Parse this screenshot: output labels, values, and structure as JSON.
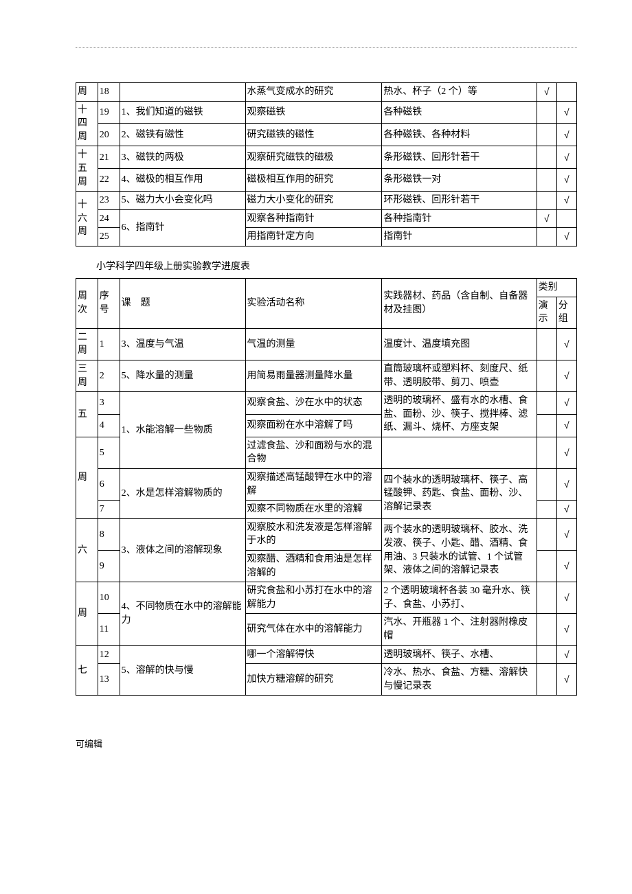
{
  "check_mark": "√",
  "table1": {
    "rows": [
      {
        "week": "周",
        "seq": "18",
        "topic": "",
        "activity": "水蒸气变成水的研究",
        "material": "热水、杯子（2 个）等",
        "demo": true,
        "group": false
      },
      {
        "week": "十四周",
        "seq": "19",
        "topic": "1、我们知道的磁铁",
        "activity": "观察磁铁",
        "material": "各种磁铁",
        "demo": false,
        "group": true,
        "week_rowspan": 2
      },
      {
        "seq": "20",
        "topic": "2、磁铁有磁性",
        "activity": "研究磁铁的磁性",
        "material": "各种磁铁、各种材料",
        "demo": false,
        "group": true
      },
      {
        "week": "十五周",
        "seq": "21",
        "topic": "3、磁铁的两极",
        "activity": "观察研究磁铁的磁极",
        "material": "条形磁铁、回形针若干",
        "demo": false,
        "group": true,
        "week_rowspan": 2
      },
      {
        "seq": "22",
        "topic": "4、磁极的相互作用",
        "activity": "磁极相互作用的研究",
        "material": "条形磁铁一对",
        "demo": false,
        "group": true
      },
      {
        "week": "十六周",
        "seq": "23",
        "topic": "5、磁力大小会变化吗",
        "activity": "磁力大小变化的研究",
        "material": "环形磁铁、回形针若干",
        "demo": false,
        "group": true,
        "week_rowspan": 3
      },
      {
        "seq": "24",
        "topic": "6、指南针",
        "activity": "观察各种指南针",
        "material": "各种指南针",
        "demo": true,
        "group": false,
        "topic_rowspan": 2
      },
      {
        "seq": "25",
        "activity": "用指南针定方向",
        "material": "指南针",
        "demo": false,
        "group": true
      }
    ]
  },
  "section_title": "小学科学四年级上册实验教学进度表",
  "table2": {
    "header": {
      "week": "周次",
      "seq": "序号",
      "topic": "课　题",
      "activity": "实验活动名称",
      "material": "实践器材、药品（含自制、自备器材及挂图）",
      "kind": "类别",
      "demo": "演示",
      "group": "分组"
    },
    "rows": [
      {
        "week": "二周",
        "seq": "1",
        "topic": "3、温度与气温",
        "activity": "气温的测量",
        "material": "温度计、温度填充图",
        "demo": false,
        "group": true
      },
      {
        "week": "三周",
        "seq": "2",
        "topic": "5、降水量的测量",
        "activity": "用简易雨量器测量降水量",
        "material": "直筒玻璃杯或塑料杯、刻度尺、纸带、透明胶带、剪刀、喷壶",
        "demo": false,
        "group": true
      },
      {
        "week": "五",
        "week_rowspan": 5,
        "seq": "3",
        "topic": "1、水能溶解一些物质",
        "topic_rowspan": 3,
        "activity": "观察食盐、沙在水中的状态",
        "material": "透明的玻璃杯、盛有水的水槽、食盐、面粉、沙、筷子、搅拌棒、滤纸、漏斗、烧杯、方座支架",
        "material_rowspan": 3,
        "demo": false,
        "group": true
      },
      {
        "seq": "4",
        "activity": "观察面粉在水中溶解了吗",
        "demo": false,
        "group": true
      },
      {
        "week2": "周",
        "seq": "5",
        "activity": "过滤食盐、沙和面粉与水的混合物",
        "material": "",
        "demo": false,
        "group": true
      },
      {
        "seq": "6",
        "topic": "2、水是怎样溶解物质的",
        "topic_rowspan": 2,
        "activity": "观察描述高锰酸钾在水中的溶解",
        "material": "四个装水的透明玻璃杯、筷子、高锰酸钾、药匙、食盐、面粉、沙、溶解记录表",
        "material_rowspan": 2,
        "demo": false,
        "group": true
      },
      {
        "seq": "7",
        "activity": "观察不同物质在水里的溶解",
        "demo": false,
        "group": true
      },
      {
        "week": "六",
        "week_rowspan": 4,
        "seq": "8",
        "topic": "3、液体之间的溶解现象",
        "topic_rowspan": 2,
        "activity": "观察胶水和洗发液是怎样溶解于水的",
        "material": "两个装水的透明玻璃杯、胶水、洗发液、筷子、小匙、醋、酒精、食用油、3 只装水的试管、1 个试管架、液体之间的溶解记录表",
        "material_rowspan": 2,
        "demo": false,
        "group": true
      },
      {
        "seq": "9",
        "activity": "观察醋、酒精和食用油是怎样溶解的",
        "demo": false,
        "group": true
      },
      {
        "week2": "周",
        "seq": "10",
        "topic": "4、不同物质在水中的溶解能力",
        "topic_rowspan": 2,
        "activity": "研究食盐和小苏打在水中的溶解能力",
        "material": "2 个透明玻璃杯各装 30 毫升水、筷子、食盐、小苏打、",
        "demo": false,
        "group": true
      },
      {
        "seq": "11",
        "activity": "研究气体在水中的溶解能力",
        "material": "汽水、开瓶器 1 个、注射器附橡皮帽",
        "demo": false,
        "group": true
      },
      {
        "week": "七",
        "week_rowspan": 2,
        "seq": "12",
        "topic": "5、溶解的快与慢",
        "topic_rowspan": 2,
        "activity": "哪一个溶解得快",
        "material": "透明玻璃杯、筷子、水槽、",
        "demo": false,
        "group": true
      },
      {
        "seq": "13",
        "activity": "加快方糖溶解的研究",
        "material": "冷水、热水、食盐、方糖、溶解快与慢记录表",
        "demo": false,
        "group": true
      }
    ]
  },
  "footer_text": "可编辑"
}
